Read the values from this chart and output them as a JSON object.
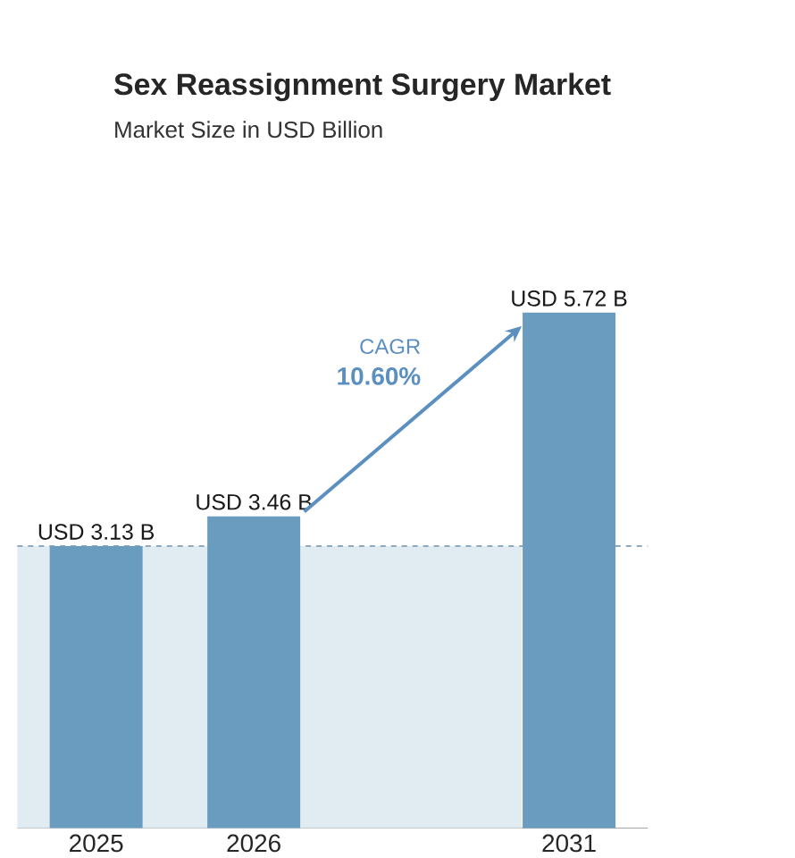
{
  "chart_data": {
    "type": "bar",
    "title": "Sex Reassignment Surgery Market",
    "subtitle": "Market Size in USD Billion",
    "categories": [
      "2025",
      "2026",
      null,
      "2031"
    ],
    "values": [
      3.13,
      3.46,
      null,
      5.72
    ],
    "value_labels": [
      "USD 3.13 B",
      "USD 3.46 B",
      null,
      "USD 5.72 B"
    ],
    "color": "#6a9cc0",
    "annotations": [
      "CAGR",
      "10.60%"
    ],
    "bands": [
      {
        "axis": "y",
        "from": 0,
        "to": 3.13,
        "color": "#e1ebf2"
      }
    ],
    "ref_lines": [
      {
        "axis": "y",
        "value": 3.13,
        "color": "#8fa9bd",
        "line_style": "dashed"
      }
    ]
  }
}
